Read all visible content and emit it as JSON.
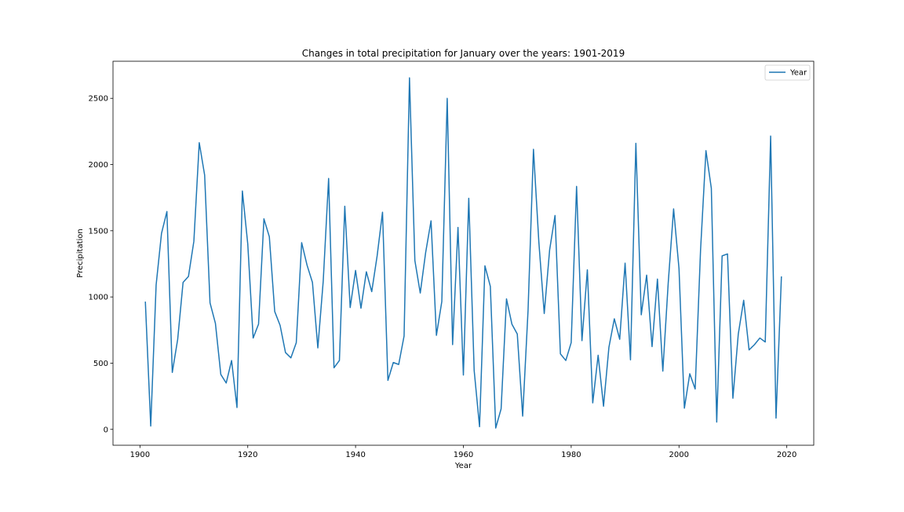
{
  "chart_data": {
    "type": "line",
    "title": "Changes in total precipitation for January over the years: 1901-2019",
    "xlabel": "Year",
    "ylabel": "Precipitation",
    "xlim": [
      1895,
      2025
    ],
    "ylim": [
      -120,
      2780
    ],
    "xticks": [
      1900,
      1920,
      1940,
      1960,
      1980,
      2000,
      2020
    ],
    "yticks": [
      0,
      500,
      1000,
      1500,
      2000,
      2500
    ],
    "grid": false,
    "legend": {
      "position": "top-right",
      "entries": [
        "Year"
      ]
    },
    "colors": {
      "series": "#1f77b4",
      "axis": "#000000"
    },
    "series": [
      {
        "name": "Year",
        "x": [
          1901,
          1902,
          1903,
          1904,
          1905,
          1906,
          1907,
          1908,
          1909,
          1910,
          1911,
          1912,
          1913,
          1914,
          1915,
          1916,
          1917,
          1918,
          1919,
          1920,
          1921,
          1922,
          1923,
          1924,
          1925,
          1926,
          1927,
          1928,
          1929,
          1930,
          1931,
          1932,
          1933,
          1934,
          1935,
          1936,
          1937,
          1938,
          1939,
          1940,
          1941,
          1942,
          1943,
          1944,
          1945,
          1946,
          1947,
          1948,
          1949,
          1950,
          1951,
          1952,
          1953,
          1954,
          1955,
          1956,
          1957,
          1958,
          1959,
          1960,
          1961,
          1962,
          1963,
          1964,
          1965,
          1966,
          1967,
          1968,
          1969,
          1970,
          1971,
          1972,
          1973,
          1974,
          1975,
          1976,
          1977,
          1978,
          1979,
          1980,
          1981,
          1982,
          1983,
          1984,
          1985,
          1986,
          1987,
          1988,
          1989,
          1990,
          1991,
          1992,
          1993,
          1994,
          1995,
          1996,
          1997,
          1998,
          1999,
          2000,
          2001,
          2002,
          2003,
          2004,
          2005,
          2006,
          2007,
          2008,
          2009,
          2010,
          2011,
          2012,
          2013,
          2014,
          2015,
          2016,
          2017,
          2018,
          2019
        ],
        "values": [
          965,
          25,
          1090,
          1480,
          1645,
          430,
          680,
          1110,
          1155,
          1420,
          2165,
          1920,
          955,
          800,
          415,
          350,
          520,
          165,
          1800,
          1400,
          690,
          795,
          1590,
          1455,
          890,
          785,
          580,
          540,
          655,
          1410,
          1240,
          1110,
          615,
          1120,
          1895,
          465,
          520,
          1685,
          920,
          1200,
          915,
          1190,
          1040,
          1310,
          1640,
          370,
          505,
          490,
          705,
          2655,
          1275,
          1030,
          1335,
          1575,
          710,
          965,
          2500,
          640,
          1525,
          410,
          1745,
          445,
          20,
          1235,
          1080,
          10,
          155,
          985,
          795,
          720,
          100,
          900,
          2115,
          1415,
          875,
          1355,
          1615,
          570,
          520,
          655,
          1835,
          670,
          1205,
          200,
          560,
          175,
          620,
          835,
          680,
          1255,
          525,
          2160,
          865,
          1165,
          625,
          1135,
          440,
          1105,
          1665,
          1215,
          160,
          420,
          305,
          1355,
          2105,
          1820,
          55,
          1310,
          1325,
          235,
          720,
          975,
          600,
          640,
          690,
          660,
          2215,
          85,
          1155
        ]
      }
    ]
  }
}
